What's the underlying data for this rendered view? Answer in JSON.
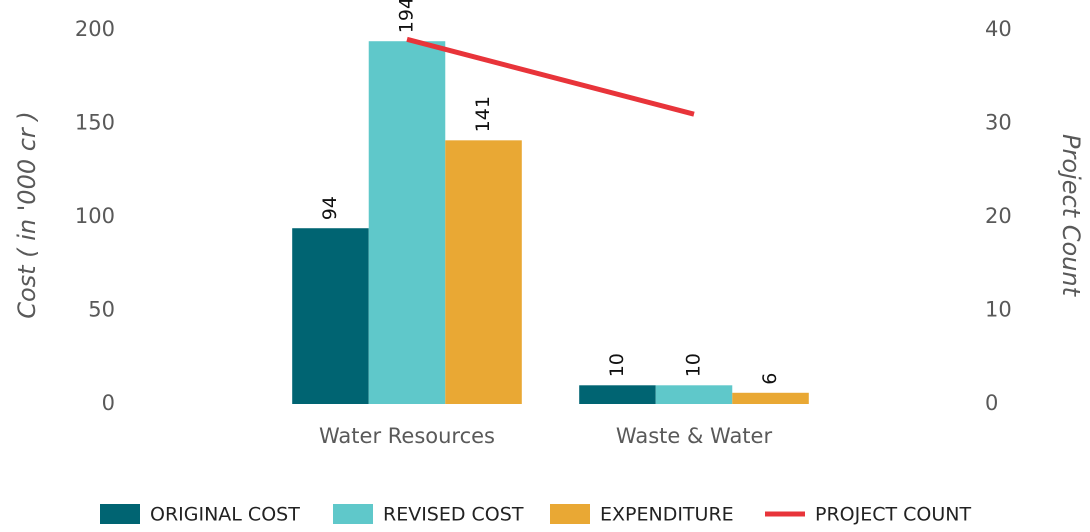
{
  "chart_data": {
    "type": "bar",
    "categories": [
      "Water Resources",
      "Waste & Water"
    ],
    "series": [
      {
        "name": "ORIGINAL COST",
        "color": "#006472",
        "values": [
          94,
          10
        ]
      },
      {
        "name": "REVISED COST",
        "color": "#5fc8ca",
        "values": [
          194,
          10
        ]
      },
      {
        "name": "EXPENDITURE",
        "color": "#e9a834",
        "values": [
          141,
          6
        ]
      },
      {
        "name": "PROJECT COUNT",
        "type": "line",
        "axis": "y2",
        "color": "#e8343a",
        "values": [
          39,
          31
        ]
      }
    ],
    "ylabel": "Cost ( in '000 cr )",
    "y2label": "Project Count",
    "ylim": [
      0,
      200
    ],
    "yticks": [
      0,
      50,
      100,
      150,
      200
    ],
    "y2lim": [
      0,
      40
    ],
    "y2ticks": [
      0,
      10,
      20,
      30,
      40
    ],
    "grid": false,
    "legend": "bottom"
  }
}
